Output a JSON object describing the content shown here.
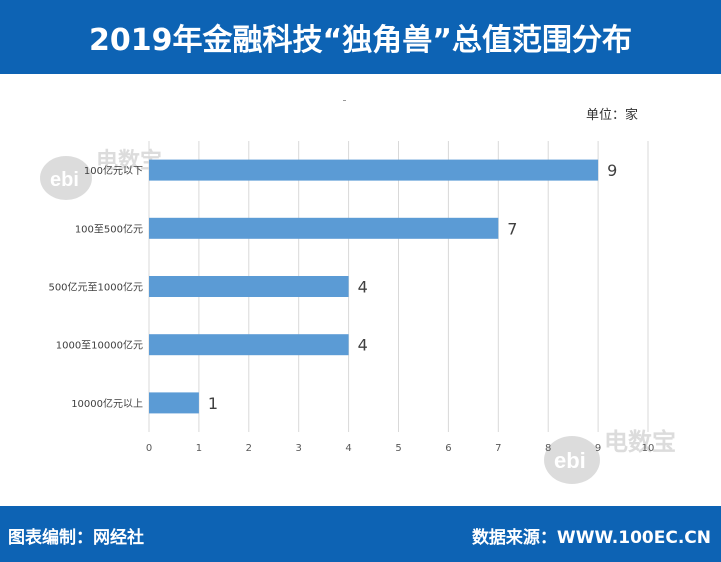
{
  "header": {
    "title": "2019年金融科技“独角兽”总值范围分布"
  },
  "unit_label": "单位：家",
  "footer": {
    "left": "图表编制：网经社",
    "right": "数据来源：WWW.100EC.CN"
  },
  "watermark": {
    "text": "电数宝",
    "logo_text": "ebi"
  },
  "colors": {
    "header": "#0d63b4",
    "bar": "#5b9bd5",
    "grid": "#d9d9d9"
  },
  "chart_data": {
    "type": "bar",
    "orientation": "horizontal",
    "categories": [
      "100亿元以下",
      "100至500亿元",
      "500亿元至1000亿元",
      "1000至10000亿元",
      "10000亿元以上"
    ],
    "values": [
      9,
      7,
      4,
      4,
      1
    ],
    "xlim": [
      0,
      10
    ],
    "xticks": [
      0,
      1,
      2,
      3,
      4,
      5,
      6,
      7,
      8,
      9,
      10
    ],
    "grid": true,
    "data_labels": true
  }
}
